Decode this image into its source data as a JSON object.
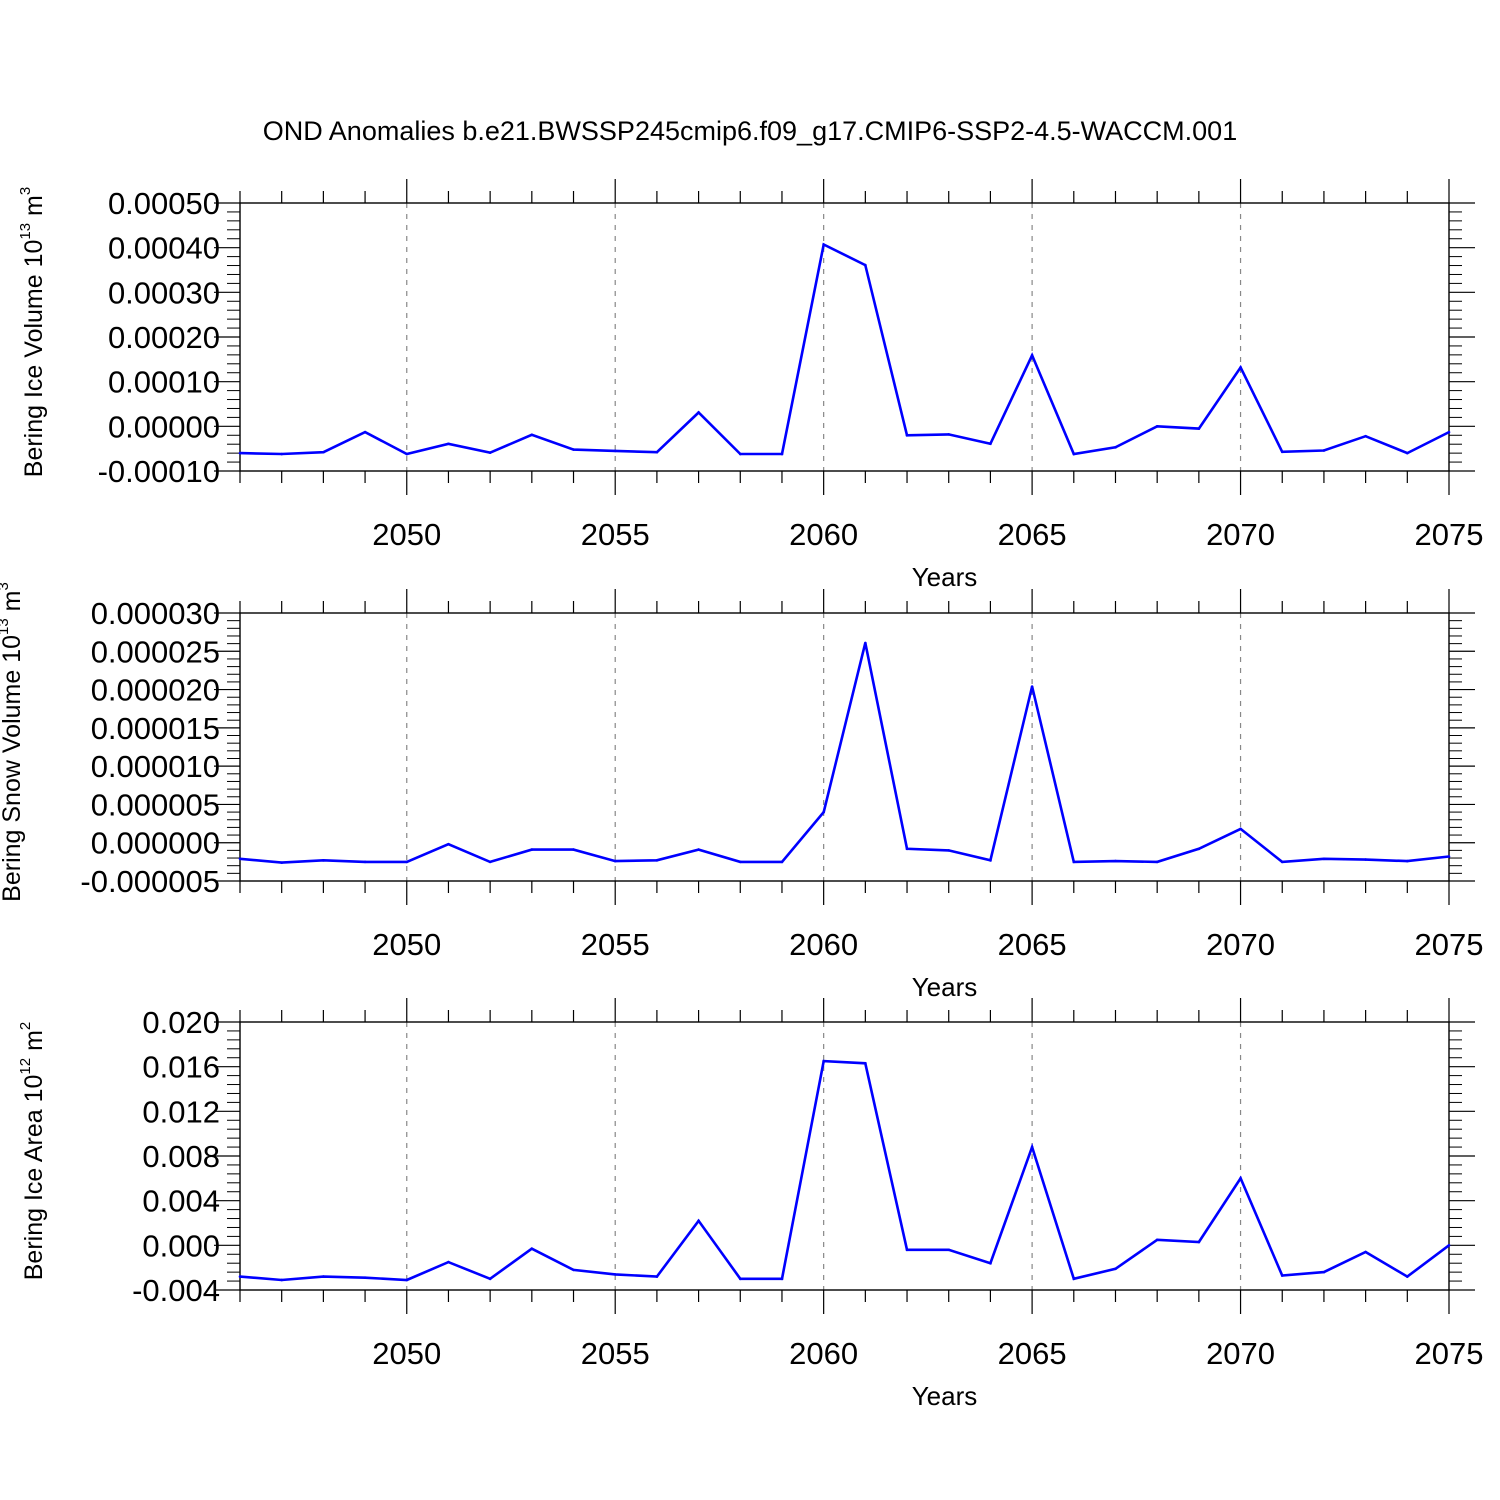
{
  "figure": {
    "title": "OND Anomalies b.e21.BWSSP245cmip6.f09_g17.CMIP6-SSP2-4.5-WACCM.001"
  },
  "style": {
    "line_color": "#0000ff",
    "axis_color": "#000000",
    "grid_color": "#888888"
  },
  "chart_data": [
    {
      "type": "line",
      "title": "",
      "xlabel": "Years",
      "ylabel_main": "Bering Ice Volume 10",
      "ylabel_exp": "13",
      "ylabel_unit": " m",
      "ylabel_unit_exp": "3",
      "xlim": [
        2046,
        2075
      ],
      "ylim": [
        -0.0001,
        0.0005
      ],
      "xticks": [
        2050,
        2055,
        2060,
        2065,
        2070,
        2075
      ],
      "yticks": [
        -0.0001,
        0,
        0.0001,
        0.0002,
        0.0003,
        0.0004,
        0.0005
      ],
      "ytick_labels": [
        "-0.00010",
        "0.00000",
        "0.00010",
        "0.00020",
        "0.00030",
        "0.00040",
        "0.00050"
      ],
      "grid": "vertical dashed at major x ticks",
      "x": [
        2046,
        2047,
        2048,
        2049,
        2050,
        2051,
        2052,
        2053,
        2054,
        2055,
        2056,
        2057,
        2058,
        2059,
        2060,
        2061,
        2062,
        2063,
        2064,
        2065,
        2066,
        2067,
        2068,
        2069,
        2070,
        2071,
        2072,
        2073,
        2074,
        2075
      ],
      "values": [
        -6e-05,
        -6.2e-05,
        -5.8e-05,
        -1.3e-05,
        -6.2e-05,
        -3.9e-05,
        -5.9e-05,
        -1.9e-05,
        -5.2e-05,
        -5.5e-05,
        -5.8e-05,
        3.1e-05,
        -6.2e-05,
        -6.2e-05,
        0.000407,
        0.000361,
        -2e-05,
        -1.8e-05,
        -3.9e-05,
        0.000159,
        -6.2e-05,
        -4.7e-05,
        0.0,
        -5e-06,
        0.000132,
        -5.7e-05,
        -5.4e-05,
        -2.2e-05,
        -6e-05,
        -1.3e-05
      ]
    },
    {
      "type": "line",
      "title": "",
      "xlabel": "Years",
      "ylabel_main": "Bering Snow Volume 10",
      "ylabel_exp": "13",
      "ylabel_unit": " m",
      "ylabel_unit_exp": "3",
      "xlim": [
        2046,
        2075
      ],
      "ylim": [
        -5e-06,
        3e-05
      ],
      "xticks": [
        2050,
        2055,
        2060,
        2065,
        2070,
        2075
      ],
      "yticks": [
        -5e-06,
        0,
        5e-06,
        1e-05,
        1.5e-05,
        2e-05,
        2.5e-05,
        3e-05
      ],
      "ytick_labels": [
        "-0.000005",
        "0.000000",
        "0.000005",
        "0.000010",
        "0.000015",
        "0.000020",
        "0.000025",
        "0.000030"
      ],
      "grid": "vertical dashed at major x ticks",
      "x": [
        2046,
        2047,
        2048,
        2049,
        2050,
        2051,
        2052,
        2053,
        2054,
        2055,
        2056,
        2057,
        2058,
        2059,
        2060,
        2061,
        2062,
        2063,
        2064,
        2065,
        2066,
        2067,
        2068,
        2069,
        2070,
        2071,
        2072,
        2073,
        2074,
        2075
      ],
      "values": [
        -2.1e-06,
        -2.6e-06,
        -2.3e-06,
        -2.5e-06,
        -2.5e-06,
        -2e-07,
        -2.5e-06,
        -9e-07,
        -9e-07,
        -2.4e-06,
        -2.3e-06,
        -9e-07,
        -2.5e-06,
        -2.5e-06,
        4e-06,
        2.61e-05,
        -8e-07,
        -1e-06,
        -2.3e-06,
        2.04e-05,
        -2.5e-06,
        -2.4e-06,
        -2.5e-06,
        -8e-07,
        1.8e-06,
        -2.5e-06,
        -2.1e-06,
        -2.2e-06,
        -2.4e-06,
        -1.8e-06
      ]
    },
    {
      "type": "line",
      "title": "",
      "xlabel": "Years",
      "ylabel_main": "Bering Ice Area 10",
      "ylabel_exp": "12",
      "ylabel_unit": " m",
      "ylabel_unit_exp": "2",
      "xlim": [
        2046,
        2075
      ],
      "ylim": [
        -0.004,
        0.02
      ],
      "xticks": [
        2050,
        2055,
        2060,
        2065,
        2070,
        2075
      ],
      "yticks": [
        -0.004,
        0,
        0.004,
        0.008,
        0.012,
        0.016,
        0.02
      ],
      "ytick_labels": [
        "-0.004",
        "0.000",
        "0.004",
        "0.008",
        "0.012",
        "0.016",
        "0.020"
      ],
      "grid": "vertical dashed at major x ticks",
      "x": [
        2046,
        2047,
        2048,
        2049,
        2050,
        2051,
        2052,
        2053,
        2054,
        2055,
        2056,
        2057,
        2058,
        2059,
        2060,
        2061,
        2062,
        2063,
        2064,
        2065,
        2066,
        2067,
        2068,
        2069,
        2070,
        2071,
        2072,
        2073,
        2074,
        2075
      ],
      "values": [
        -0.0028,
        -0.0031,
        -0.0028,
        -0.0029,
        -0.0031,
        -0.0015,
        -0.003,
        -0.0003,
        -0.0022,
        -0.0026,
        -0.0028,
        0.0022,
        -0.003,
        -0.003,
        0.0165,
        0.0163,
        -0.0004,
        -0.0004,
        -0.0016,
        0.0088,
        -0.003,
        -0.0021,
        0.0005,
        0.0003,
        0.006,
        -0.0027,
        -0.0024,
        -0.0006,
        -0.0028,
        0.0
      ]
    }
  ]
}
